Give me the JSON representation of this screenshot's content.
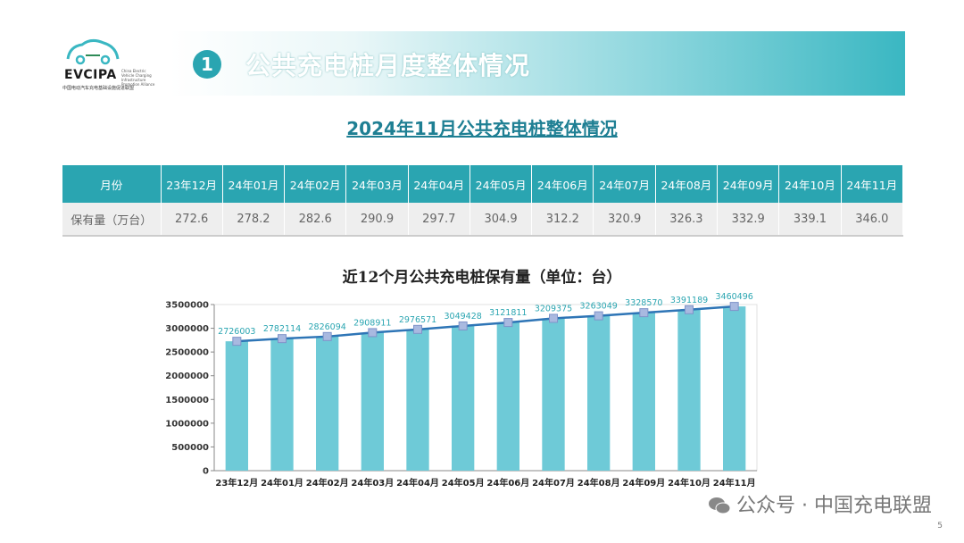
{
  "logo": {
    "brand": "EVCIPA",
    "english": "China Electric Vehicle Charging Infrastructure Promotion Alliance",
    "chinese": "中国电动汽车充电基础设施促进联盟"
  },
  "header": {
    "number": "1",
    "title": "公共充电桩月度整体情况"
  },
  "table": {
    "title": "2024年11月公共充电桩整体情况",
    "header_label": "月份",
    "months": [
      "23年12月",
      "24年01月",
      "24年02月",
      "24年03月",
      "24年04月",
      "24年05月",
      "24年06月",
      "24年07月",
      "24年08月",
      "24年09月",
      "24年10月",
      "24年11月"
    ],
    "row_label": "保有量（万台）",
    "values": [
      "272.6",
      "278.2",
      "282.6",
      "290.9",
      "297.7",
      "304.9",
      "312.2",
      "320.9",
      "326.3",
      "332.9",
      "339.1",
      "346.0"
    ]
  },
  "chart_data": {
    "type": "bar",
    "title": "近12个月公共充电桩保有量（单位：台）",
    "categories": [
      "23年12月",
      "24年01月",
      "24年02月",
      "24年03月",
      "24年04月",
      "24年05月",
      "24年06月",
      "24年07月",
      "24年08月",
      "24年09月",
      "24年10月",
      "24年11月"
    ],
    "series": [
      {
        "type": "bar",
        "values": [
          2726003,
          2782114,
          2826094,
          2908911,
          2976571,
          3049428,
          3121811,
          3209375,
          3263049,
          3328570,
          3391189,
          3460496
        ]
      },
      {
        "type": "line",
        "values": [
          2726003,
          2782114,
          2826094,
          2908911,
          2976571,
          3049428,
          3121811,
          3209375,
          3263049,
          3328570,
          3391189,
          3460496
        ]
      }
    ],
    "ylim": [
      0,
      3500000
    ],
    "yticks": [
      0,
      500000,
      1000000,
      1500000,
      2000000,
      2500000,
      3000000,
      3500000
    ],
    "grid": false,
    "bar_color": "#6ecad7",
    "line_color": "#2e75b6",
    "label_color": "#2aa5b1"
  },
  "footer": {
    "watermark": "公众号 · 中国充电联盟",
    "page": "5"
  }
}
